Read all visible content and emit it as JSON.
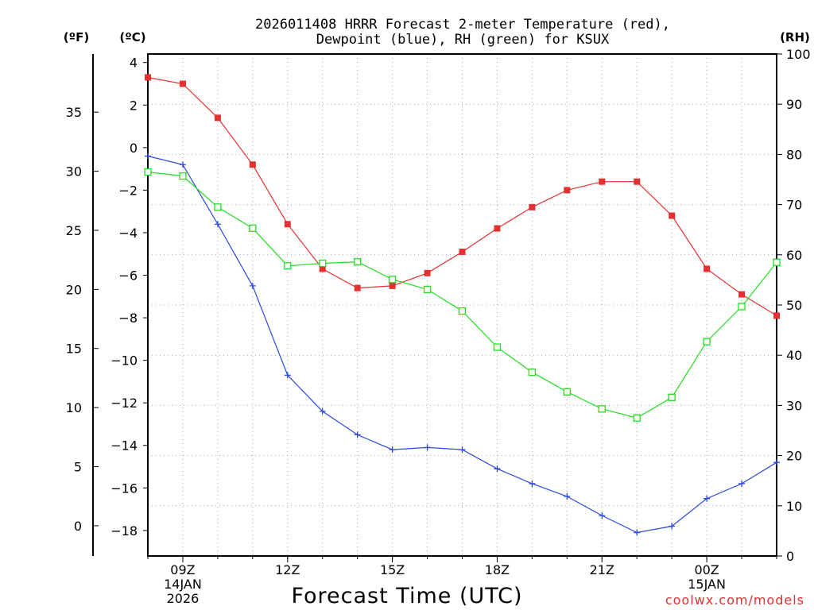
{
  "chart_data": {
    "type": "line",
    "title_line1": "2026011408 HRRR Forecast 2-meter Temperature (red),",
    "title_line2": "Dewpoint (blue), RH (green) for KSUX",
    "xlabel": "Forecast Time (UTC)",
    "left_unit_f": "(ºF)",
    "left_unit_c": "(ºC)",
    "right_unit": "(RH)",
    "credit": "coolwx.com/models",
    "x_hours": [
      8,
      9,
      10,
      11,
      12,
      13,
      14,
      15,
      16,
      17,
      18,
      19,
      20,
      21,
      22,
      23,
      24,
      25,
      26
    ],
    "x_ticks": [
      {
        "hour": 9,
        "label": "09Z",
        "sub1": "14JAN",
        "sub2": "2026"
      },
      {
        "hour": 12,
        "label": "12Z",
        "sub1": "",
        "sub2": ""
      },
      {
        "hour": 15,
        "label": "15Z",
        "sub1": "",
        "sub2": ""
      },
      {
        "hour": 18,
        "label": "18Z",
        "sub1": "",
        "sub2": ""
      },
      {
        "hour": 21,
        "label": "21Z",
        "sub1": "",
        "sub2": ""
      },
      {
        "hour": 24,
        "label": "00Z",
        "sub1": "15JAN",
        "sub2": ""
      }
    ],
    "celsius_range": [
      -19.2,
      4.4
    ],
    "celsius_ticks": [
      "4",
      "2",
      "0",
      "−2",
      "−4",
      "−6",
      "−8",
      "−10",
      "−12",
      "−14",
      "−16",
      "−18"
    ],
    "fahrenheit_ticks": [
      "35",
      "30",
      "25",
      "20",
      "15",
      "10",
      "5",
      "0"
    ],
    "rh_range": [
      0,
      100
    ],
    "rh_ticks": [
      "100",
      "90",
      "80",
      "70",
      "60",
      "50",
      "40",
      "30",
      "20",
      "10",
      "0"
    ],
    "series": [
      {
        "name": "Temperature",
        "unit": "C",
        "color": "#e53030",
        "marker": "filled-square",
        "values": [
          3.3,
          3.0,
          1.4,
          -0.8,
          -3.6,
          -5.7,
          -6.6,
          -6.5,
          -5.9,
          -4.9,
          -3.8,
          -2.8,
          -2.0,
          -1.6,
          -1.6,
          -3.2,
          -5.7,
          -6.9,
          -7.9
        ]
      },
      {
        "name": "Dewpoint",
        "unit": "C",
        "color": "#2c48e0",
        "marker": "plus",
        "values": [
          -0.4,
          -0.8,
          -3.6,
          -6.5,
          -10.7,
          -12.4,
          -13.5,
          -14.2,
          -14.1,
          -14.2,
          -15.1,
          -15.8,
          -16.4,
          -17.3,
          -18.1,
          -17.8,
          -16.5,
          -15.8,
          -14.8
        ]
      },
      {
        "name": "RH",
        "unit": "%",
        "color": "#22dd22",
        "marker": "open-square",
        "values": [
          76.5,
          75.7,
          69.5,
          65.3,
          57.8,
          58.3,
          58.6,
          55.1,
          53.1,
          48.8,
          41.6,
          36.6,
          32.7,
          29.3,
          27.5,
          31.6,
          42.7,
          49.7,
          58.5
        ]
      }
    ]
  }
}
